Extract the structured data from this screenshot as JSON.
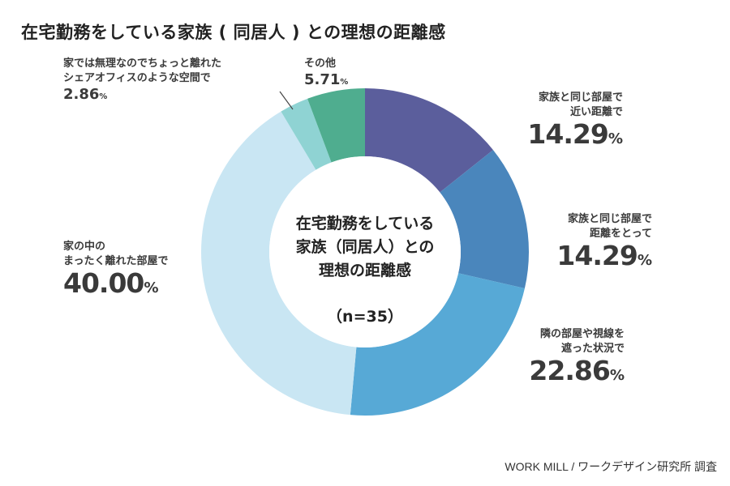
{
  "title": "在宅勤務をしている家族 ( 同居人 ) との理想の距離感",
  "center": {
    "line1": "在宅勤務をしている",
    "line2": "家族（同居人）との",
    "line3": "理想の距離感",
    "n": "（n=35）"
  },
  "source": "WORK MILL / ワークデザイン研究所 調査",
  "colors": {
    "slice1": "#5b5e9c",
    "slice2": "#4a86bc",
    "slice3": "#57a9d6",
    "slice4": "#c9e6f3",
    "slice5": "#8fd3d3",
    "slice6": "#4fad8f"
  },
  "chart_data": {
    "type": "pie",
    "title": "在宅勤務をしている家族 ( 同居人 ) との理想の距離感",
    "unit": "%",
    "slices": [
      {
        "label_lines": [
          "家族と同じ部屋で",
          "近い距離で"
        ],
        "value": 14.29,
        "pct_text": "14.29"
      },
      {
        "label_lines": [
          "家族と同じ部屋で",
          "距離をとって"
        ],
        "value": 14.29,
        "pct_text": "14.29"
      },
      {
        "label_lines": [
          "隣の部屋や視線を",
          "遮った状況で"
        ],
        "value": 22.86,
        "pct_text": "22.86"
      },
      {
        "label_lines": [
          "家の中の",
          "まったく離れた部屋で"
        ],
        "value": 40.0,
        "pct_text": "40.00"
      },
      {
        "label_lines": [
          "家では無理なのでちょっと離れた",
          "シェアオフィスのような空間で"
        ],
        "value": 2.86,
        "pct_text": "2.86"
      },
      {
        "label_lines": [
          "その他"
        ],
        "value": 5.71,
        "pct_text": "5.71"
      }
    ]
  }
}
